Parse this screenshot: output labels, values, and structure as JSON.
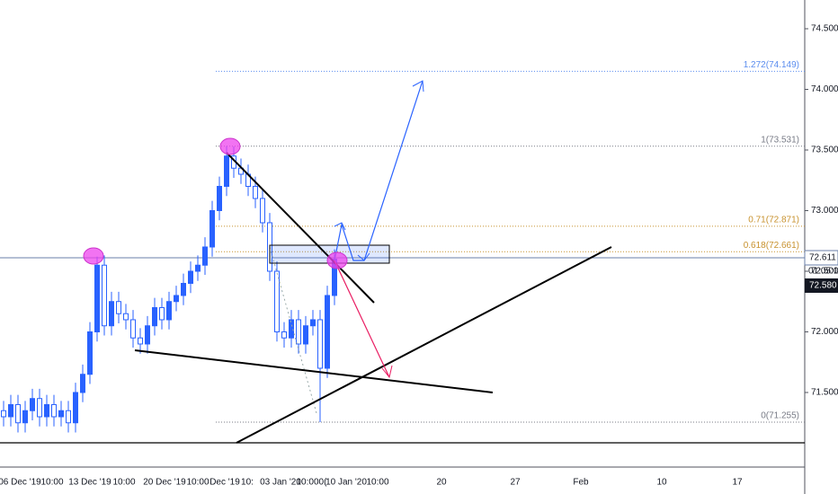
{
  "chart_data": {
    "type": "candlestick",
    "open": [
      71.35,
      71.3,
      71.4,
      71.25,
      71.35,
      71.45,
      71.3,
      71.4,
      71.3,
      71.35,
      71.25,
      71.5,
      71.65,
      72.0,
      72.55,
      72.05,
      72.25,
      72.15,
      72.1,
      71.95,
      71.9,
      72.05,
      72.2,
      72.1,
      72.25,
      72.3,
      72.4,
      72.5,
      72.55,
      72.7,
      73.0,
      73.2,
      73.45,
      73.35,
      73.3,
      73.2,
      73.1,
      72.9,
      72.5,
      72.0,
      71.95,
      72.1,
      71.9,
      72.05,
      72.1,
      71.7,
      72.3
    ],
    "high": [
      71.43,
      71.48,
      71.48,
      71.43,
      71.53,
      71.53,
      71.48,
      71.48,
      71.43,
      71.43,
      71.58,
      71.73,
      72.08,
      72.62,
      72.63,
      72.33,
      72.33,
      72.23,
      72.18,
      72.03,
      72.13,
      72.28,
      72.28,
      72.33,
      72.38,
      72.48,
      72.58,
      72.63,
      72.78,
      73.08,
      73.28,
      73.531,
      73.53,
      73.43,
      73.38,
      73.28,
      73.18,
      72.98,
      72.58,
      72.08,
      72.18,
      72.18,
      72.13,
      72.18,
      72.18,
      72.38,
      72.68
    ],
    "low": [
      71.22,
      71.22,
      71.17,
      71.17,
      71.27,
      71.22,
      71.22,
      71.22,
      71.22,
      71.17,
      71.17,
      71.42,
      71.57,
      71.92,
      71.97,
      71.97,
      72.07,
      72.02,
      71.87,
      71.82,
      71.82,
      71.97,
      72.02,
      72.02,
      72.17,
      72.22,
      72.32,
      72.42,
      72.47,
      72.62,
      72.92,
      73.12,
      73.27,
      73.22,
      73.12,
      73.02,
      72.82,
      72.42,
      71.92,
      71.87,
      71.87,
      71.82,
      71.82,
      71.97,
      71.255,
      71.62,
      72.22
    ],
    "close": [
      71.3,
      71.4,
      71.25,
      71.35,
      71.45,
      71.3,
      71.4,
      71.3,
      71.35,
      71.25,
      71.5,
      71.65,
      72.0,
      72.55,
      72.05,
      72.25,
      72.15,
      72.1,
      71.95,
      71.9,
      72.05,
      72.2,
      72.1,
      72.25,
      72.3,
      72.4,
      72.5,
      72.55,
      72.7,
      73.0,
      73.2,
      73.45,
      73.35,
      73.3,
      73.2,
      73.1,
      72.9,
      72.5,
      72.0,
      71.95,
      72.1,
      71.9,
      72.05,
      72.1,
      71.7,
      72.3,
      72.6
    ],
    "color": "#2962ff",
    "ylim": [
      70.885,
      74.737
    ],
    "yticks": [
      {
        "value": 71.5,
        "label": "71.500"
      },
      {
        "value": 72,
        "label": "72.000"
      },
      {
        "value": 72.5,
        "label": "72.500"
      },
      {
        "value": 73,
        "label": "73.000"
      },
      {
        "value": 73.5,
        "label": "73.500"
      },
      {
        "value": 74,
        "label": "74.000"
      },
      {
        "value": 74.5,
        "label": "74.500"
      }
    ],
    "x_labels": [
      "06 Dec '19",
      "10:00",
      "13 Dec '19",
      "10:00",
      "20 Dec '19",
      "10:00",
      "Dec '19",
      "10:",
      "03 Jan '20",
      "10:00",
      "0(",
      "10 Jan '20",
      "10:00",
      "20",
      "27",
      "Feb",
      "10",
      "17"
    ],
    "fib_levels": [
      {
        "value": 74.149,
        "label": "1.272(74.149)",
        "color": "#5b8def"
      },
      {
        "value": 73.531,
        "label": "1(73.531)",
        "color": "#787b86"
      },
      {
        "value": 72.871,
        "label": "0.71(72.871)",
        "color": "#c8922e"
      },
      {
        "value": 72.661,
        "label": "0.618(72.661)",
        "color": "#c8922e"
      },
      {
        "value": 71.255,
        "label": "0(71.255)",
        "color": "#787b86"
      }
    ],
    "price_line": {
      "value": 72.611,
      "label": "72.611"
    },
    "countdown": "01:05:17",
    "last_price": {
      "value": 72.58,
      "label": "72.580"
    }
  }
}
